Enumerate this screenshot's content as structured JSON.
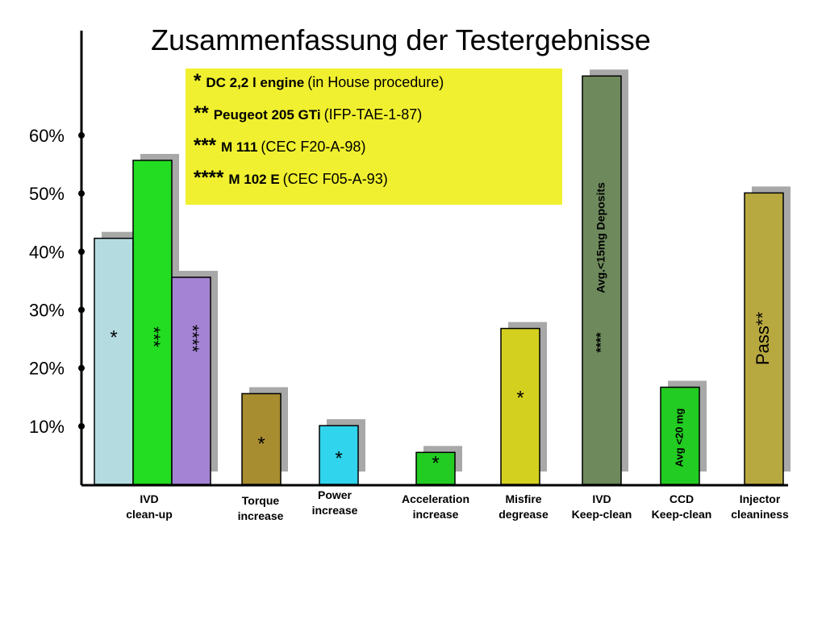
{
  "chart_data": {
    "type": "bar",
    "title": "Zusammenfassung der Testergebnisse",
    "ylim": [
      0,
      78
    ],
    "yticks": [
      {
        "value": 10,
        "label": "10%"
      },
      {
        "value": 20,
        "label": "20%"
      },
      {
        "value": 30,
        "label": "30%"
      },
      {
        "value": 40,
        "label": "40%"
      },
      {
        "value": 50,
        "label": "50%"
      },
      {
        "value": 60,
        "label": "60%"
      }
    ],
    "groups": [
      {
        "category": "IVD\nclean-up",
        "bars": [
          {
            "value": 42.3,
            "color": "#b4dce0",
            "label": "*"
          },
          {
            "value": 55.7,
            "color": "#22dd22",
            "label": "***"
          },
          {
            "value": 35.6,
            "color": "#a483d4",
            "label": "****"
          }
        ]
      },
      {
        "category": "Torque\nincrease",
        "bars": [
          {
            "value": 15.6,
            "color": "#a88c30",
            "label": "*"
          }
        ]
      },
      {
        "category": "Power\nincrease",
        "bars": [
          {
            "value": 10.1,
            "color": "#30d4ec",
            "label": "*"
          }
        ]
      },
      {
        "category": "Acceleration\nincrease",
        "bars": [
          {
            "value": 5.5,
            "color": "#22cc22",
            "label": "*"
          }
        ]
      },
      {
        "category": "Misfire\ndegrease",
        "bars": [
          {
            "value": 26.8,
            "color": "#d4d020",
            "label": "*"
          }
        ]
      },
      {
        "category": "IVD\nKeep-clean",
        "bars": [
          {
            "value": 70.2,
            "color": "#6e8a5c",
            "label": "****",
            "note": "Avg.<15mg Deposits"
          }
        ]
      },
      {
        "category": "CCD\nKeep-clean",
        "bars": [
          {
            "value": 16.7,
            "color": "#22cc22",
            "label": "Avg <20 mg"
          }
        ]
      },
      {
        "category": "Injector\ncleaniness",
        "bars": [
          {
            "value": 50.1,
            "color": "#b8a840",
            "label": "Pass**"
          }
        ]
      }
    ],
    "legend_box": [
      {
        "marker": "*",
        "name": "DC 2,2 l engine",
        "procedure": "(in House procedure)"
      },
      {
        "marker": "**",
        "name": "Peugeot 205 GTi",
        "procedure": "(IFP-TAE-1-87)"
      },
      {
        "marker": "***",
        "name": "M 111",
        "procedure": "(CEC F20-A-98)"
      },
      {
        "marker": "****",
        "name": "M 102 E",
        "procedure": "(CEC F05-A-93)"
      }
    ]
  }
}
